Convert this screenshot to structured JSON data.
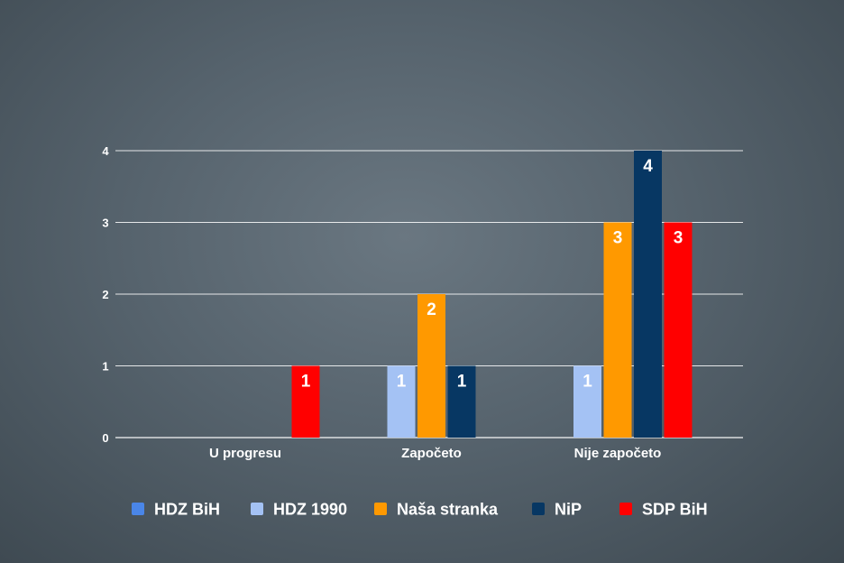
{
  "chart_data": {
    "type": "bar",
    "categories": [
      "U progresu",
      "Započeto",
      "Nije započeto"
    ],
    "series": [
      {
        "name": "HDZ BiH",
        "color": "#4a86e8",
        "values": [
          0,
          0,
          0
        ]
      },
      {
        "name": "HDZ 1990",
        "color": "#a4c2f4",
        "values": [
          0,
          1,
          1
        ]
      },
      {
        "name": "Naša stranka",
        "color": "#ff9900",
        "values": [
          0,
          2,
          3
        ]
      },
      {
        "name": "NiP",
        "color": "#073763",
        "values": [
          0,
          1,
          4
        ]
      },
      {
        "name": "SDP BiH",
        "color": "#ff0000",
        "values": [
          1,
          0,
          3
        ]
      }
    ],
    "ylim": [
      0,
      4
    ],
    "yticks": [
      "0",
      "1",
      "2",
      "3",
      "4"
    ],
    "grid": true,
    "legend": "bottom",
    "title": "",
    "xlabel": "",
    "ylabel": ""
  }
}
